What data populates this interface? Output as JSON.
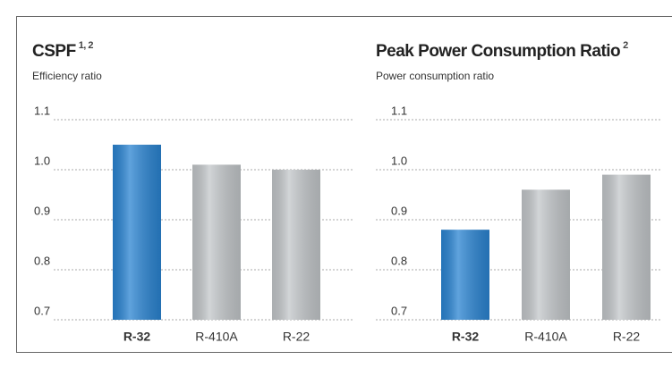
{
  "chart_data": [
    {
      "type": "bar",
      "title": "CSPF",
      "title_sup": "1, 2",
      "ylabel": "Efficiency ratio",
      "categories": [
        "R-32",
        "R-410A",
        "R-22"
      ],
      "values": [
        1.05,
        1.01,
        1.0
      ],
      "colors": [
        "#2a84d2",
        "#c3c7ca",
        "#c3c7ca"
      ],
      "highlight_index": 0,
      "ylim": [
        0.7,
        1.1
      ],
      "yticks": [
        0.7,
        0.8,
        0.9,
        {
          "value": 1,
          "label": "1.0"
        },
        1.1
      ],
      "grid": true
    },
    {
      "type": "bar",
      "title": "Peak Power Consumption Ratio",
      "title_sup": "2",
      "ylabel": "Power consumption ratio",
      "categories": [
        "R-32",
        "R-410A",
        "R-22"
      ],
      "values": [
        0.88,
        0.96,
        0.99
      ],
      "colors": [
        "#2a84d2",
        "#c3c7ca",
        "#c3c7ca"
      ],
      "highlight_index": 0,
      "ylim": [
        0.7,
        1.1
      ],
      "yticks": [
        0.7,
        0.8,
        0.9,
        {
          "value": 1,
          "label": "1.0"
        },
        1.1
      ],
      "grid": true
    }
  ]
}
